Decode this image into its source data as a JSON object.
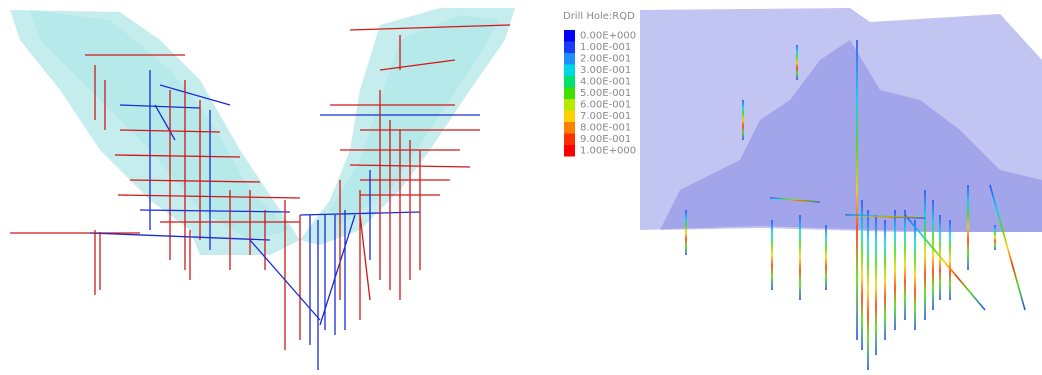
{
  "legend": {
    "title": "Drill  Hole:RQD",
    "items": [
      {
        "label": "0.00E+000",
        "color": "#0000ff"
      },
      {
        "label": "1.00E-001",
        "color": "#1a3cff"
      },
      {
        "label": "2.00E-001",
        "color": "#1e90ff"
      },
      {
        "label": "3.00E-001",
        "color": "#00d8e8"
      },
      {
        "label": "4.00E-001",
        "color": "#00e070"
      },
      {
        "label": "5.00E-001",
        "color": "#40e000"
      },
      {
        "label": "6.00E-001",
        "color": "#b8e800"
      },
      {
        "label": "7.00E-001",
        "color": "#ffd000"
      },
      {
        "label": "8.00E-001",
        "color": "#ff8000"
      },
      {
        "label": "9.00E-001",
        "color": "#ff3000"
      },
      {
        "label": "1.00E+000",
        "color": "#ff0000"
      }
    ]
  }
}
